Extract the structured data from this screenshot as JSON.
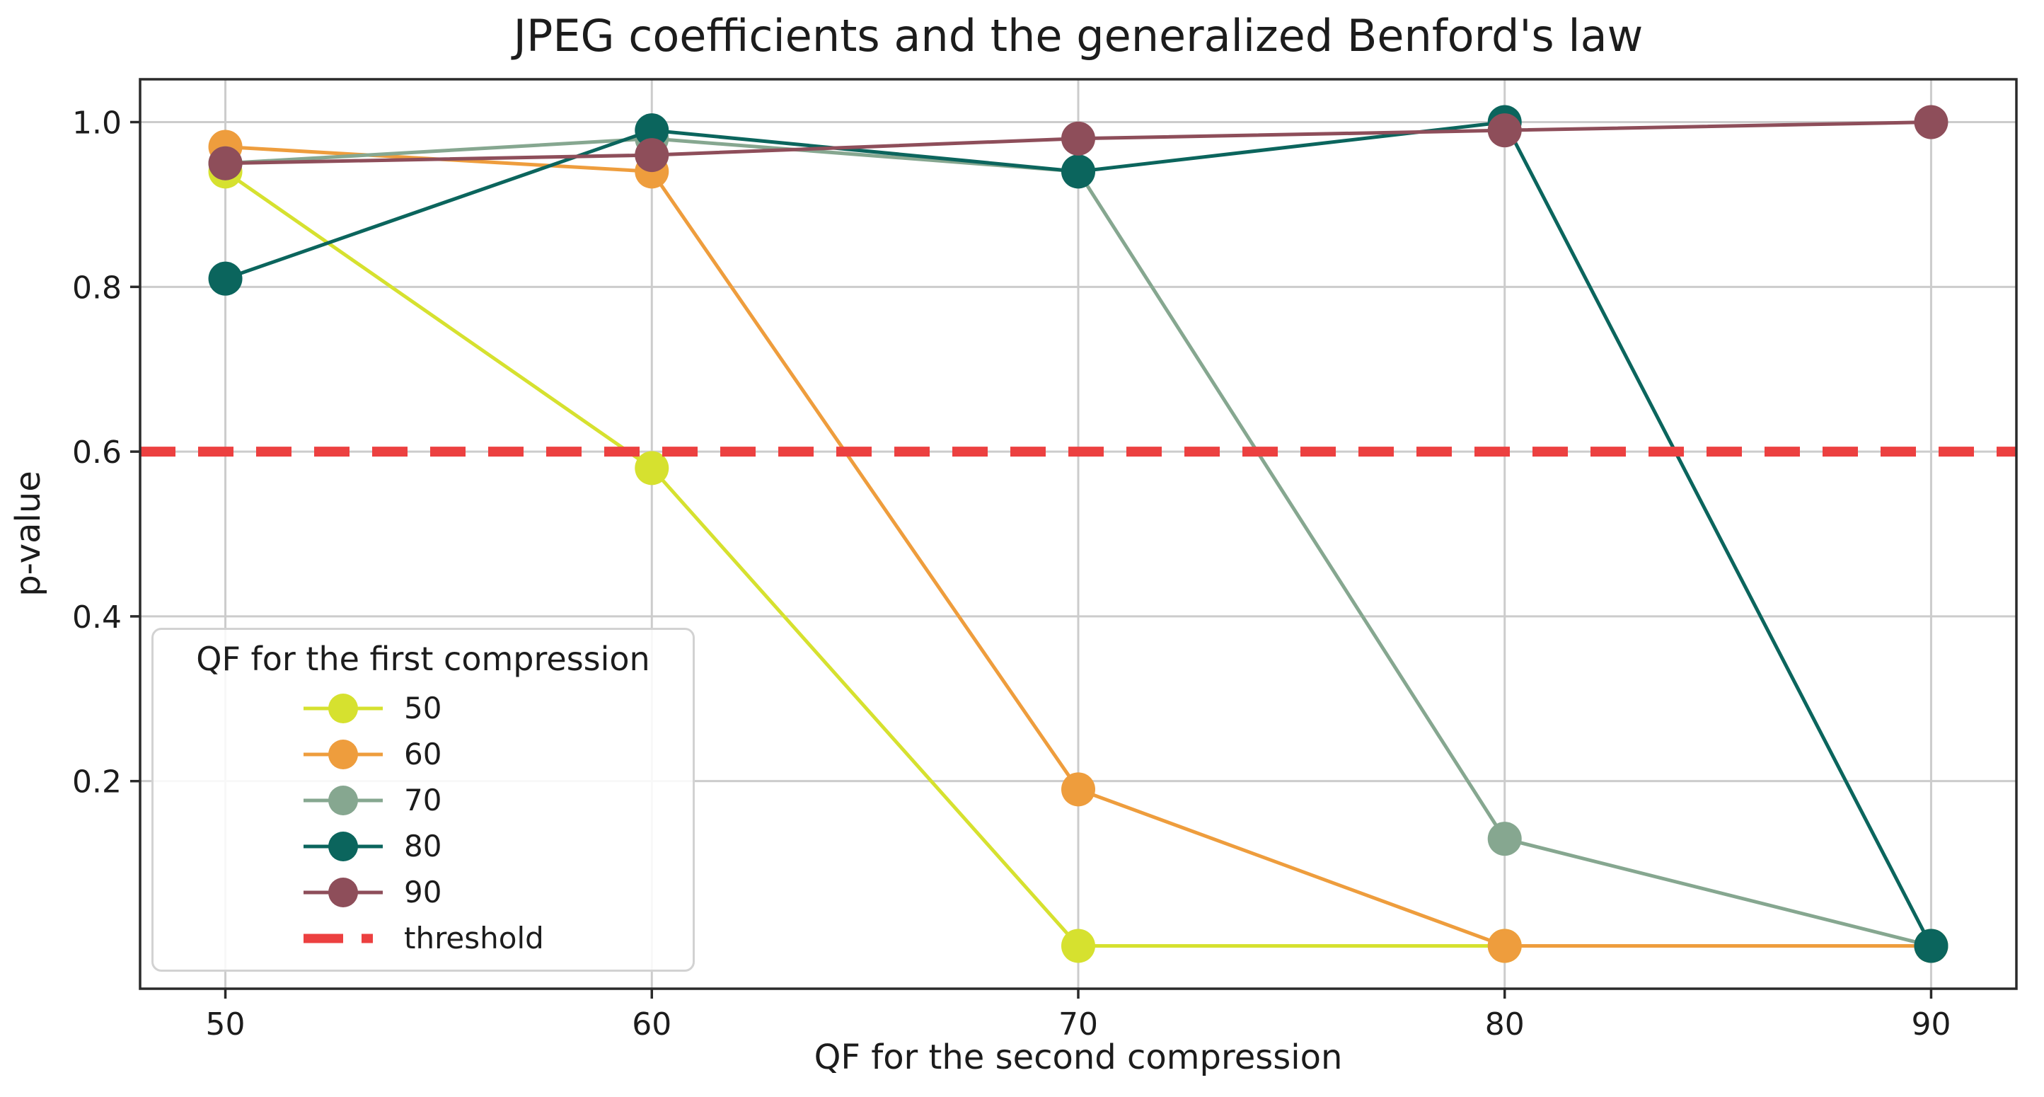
{
  "chart_data": {
    "type": "line",
    "title": "JPEG coefficients and the generalized Benford's law",
    "xlabel": "QF for the second compression",
    "ylabel": "p-value",
    "x": [
      50,
      60,
      70,
      80,
      90
    ],
    "series": [
      {
        "name": "50",
        "color": "#d6e12f",
        "values": [
          0.94,
          0.58,
          0.0,
          0.0,
          0.0
        ]
      },
      {
        "name": "60",
        "color": "#ee9d3d",
        "values": [
          0.97,
          0.94,
          0.19,
          0.0,
          0.0
        ]
      },
      {
        "name": "70",
        "color": "#86a790",
        "values": [
          0.95,
          0.98,
          0.94,
          0.13,
          0.0
        ]
      },
      {
        "name": "80",
        "color": "#0b655d",
        "values": [
          0.81,
          0.99,
          0.94,
          1.0,
          0.0
        ]
      },
      {
        "name": "90",
        "color": "#8e4e5a",
        "values": [
          0.95,
          0.96,
          0.98,
          0.99,
          1.0
        ]
      }
    ],
    "threshold": {
      "label": "threshold",
      "value": 0.6,
      "color": "#ec4040",
      "style": "dashed"
    },
    "legend_title": "QF for the first compression",
    "legend_position": "lower left",
    "x_ticks": [
      50,
      60,
      70,
      80,
      90
    ],
    "y_ticks": [
      0.2,
      0.4,
      0.6,
      0.8,
      1.0
    ],
    "xlim": [
      48,
      92
    ],
    "ylim": [
      -0.052,
      1.052
    ],
    "grid": true,
    "grid_color": "#cccccc",
    "spine_color": "#2a2a2a",
    "background": "#ffffff"
  }
}
